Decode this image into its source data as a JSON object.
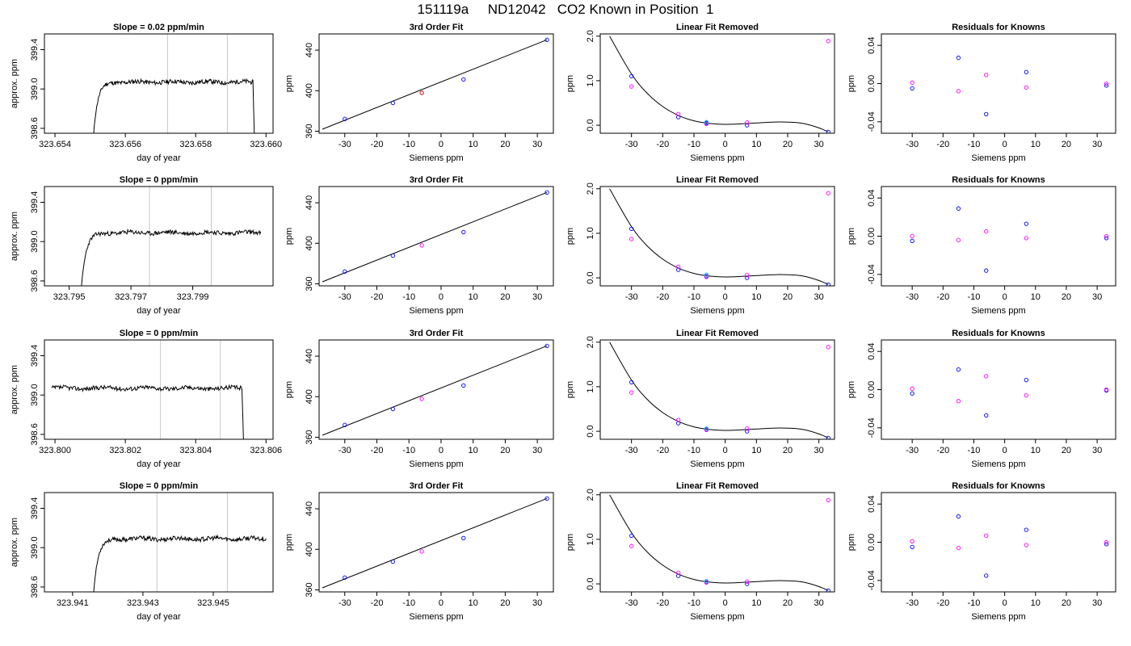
{
  "page": {
    "title": "151119a     ND12042   CO2 Known in Position  1"
  },
  "colors": {
    "trace": "#000000",
    "fit_line": "#000000",
    "cursor_lines": "#c8c8c8",
    "point_blue": "#0000ff",
    "point_magenta": "#ff00ff",
    "point_lightblue": "#00bfff",
    "point_red": "#ff0000"
  },
  "chart_data": [
    {
      "type": "line",
      "panel": "time-series",
      "row": 0,
      "title": "Slope =  0.02  ppm/min",
      "xlabel": "day of year",
      "ylabel": "approx. ppm",
      "xlim": [
        323.6537,
        323.6602
      ],
      "ylim": [
        398.55,
        399.56
      ],
      "xticks": [
        323.654,
        323.656,
        323.658,
        323.66
      ],
      "xtick_labels": [
        "323.654",
        "323.656",
        "323.658",
        "323.660"
      ],
      "yticks": [
        398.6,
        399.0,
        399.4
      ],
      "ytick_labels": [
        "398.6",
        "399.0",
        "399.4"
      ],
      "vlines": [
        323.6572,
        323.6589
      ],
      "trace_start": 323.6551,
      "trace_end": 323.6597,
      "rise_start_value": 398.55,
      "plateau": 399.07,
      "drop_end": true,
      "noise_seed": 11
    },
    {
      "type": "scatter",
      "panel": "fit",
      "row": 0,
      "title": "3rd Order Fit",
      "xlabel": "Siemens ppm",
      "ylabel": "ppm",
      "xlim": [
        -38,
        35
      ],
      "ylim": [
        358,
        456
      ],
      "xticks": [
        -30,
        -20,
        -10,
        0,
        10,
        20,
        30
      ],
      "yticks": [
        360,
        400,
        440
      ],
      "series": [
        {
          "color_key": "point_blue",
          "x": [
            -30,
            -15,
            7,
            33
          ],
          "y": [
            372.1,
            387.9,
            411.1,
            450.1
          ]
        },
        {
          "color_key": "point_lightblue",
          "x": [
            -6
          ],
          "y": [
            397.7
          ]
        },
        {
          "color_key": "point_red",
          "x": [
            -6
          ],
          "y": [
            397.9
          ]
        }
      ],
      "fit_line": {
        "x": [
          -37,
          33
        ],
        "y": [
          362.0,
          450.2
        ]
      }
    },
    {
      "type": "scatter",
      "panel": "linear-removed",
      "row": 0,
      "title": "Linear Fit Removed",
      "xlabel": "Siemens ppm",
      "ylabel": "ppm",
      "xlim": [
        -40,
        35
      ],
      "ylim": [
        -0.18,
        2.05
      ],
      "xticks": [
        -30,
        -20,
        -10,
        0,
        10,
        20,
        30
      ],
      "yticks": [
        0.0,
        1.0,
        2.0
      ],
      "ytick_labels": [
        "0.0",
        "1.0",
        "2.0"
      ],
      "series": [
        {
          "color_key": "point_blue",
          "x": [
            -30,
            -15,
            -6,
            7,
            33
          ],
          "y": [
            1.1,
            0.18,
            0.05,
            0.0,
            -0.15
          ]
        },
        {
          "color_key": "point_magenta",
          "x": [
            -30,
            -15,
            -6,
            7,
            33
          ],
          "y": [
            0.87,
            0.25,
            0.03,
            0.06,
            1.89
          ]
        },
        {
          "color_key": "point_lightblue",
          "x": [
            -6
          ],
          "y": [
            0.07
          ]
        }
      ],
      "curve": {
        "x": [
          -37,
          -30,
          -25,
          -20,
          -15,
          -10,
          -5,
          0,
          5,
          10,
          15,
          20,
          25,
          30,
          33
        ],
        "y": [
          2.0,
          1.15,
          0.72,
          0.42,
          0.22,
          0.1,
          0.04,
          0.02,
          0.03,
          0.05,
          0.07,
          0.07,
          0.04,
          -0.06,
          -0.15
        ]
      }
    },
    {
      "type": "scatter",
      "panel": "residuals",
      "row": 0,
      "title": "Residuals for Knowns",
      "xlabel": "Siemens ppm",
      "ylabel": "ppm",
      "xlim": [
        -40,
        36
      ],
      "ylim": [
        -0.052,
        0.052
      ],
      "xticks": [
        -30,
        -20,
        -10,
        0,
        10,
        20,
        30
      ],
      "yticks": [
        -0.04,
        0.0,
        0.04
      ],
      "ytick_labels": [
        "-0.04",
        "0.00",
        "0.04"
      ],
      "series": [
        {
          "color_key": "point_blue",
          "x": [
            -30,
            -15,
            -6,
            7,
            33
          ],
          "y": [
            -0.005,
            0.027,
            -0.032,
            0.012,
            -0.002
          ]
        },
        {
          "color_key": "point_magenta",
          "x": [
            -30,
            -15,
            -6,
            7,
            33
          ],
          "y": [
            0.001,
            -0.008,
            0.009,
            -0.004,
            0.0
          ]
        }
      ]
    },
    {
      "type": "line",
      "panel": "time-series",
      "row": 1,
      "title": "Slope =  0  ppm/min",
      "xlabel": "day of year",
      "ylabel": "approx. ppm",
      "xlim": [
        323.7942,
        323.8016
      ],
      "ylim": [
        398.55,
        399.56
      ],
      "xticks": [
        323.795,
        323.797,
        323.799
      ],
      "xtick_labels": [
        "323.795",
        "323.797",
        "323.799"
      ],
      "yticks": [
        398.6,
        399.0,
        399.4
      ],
      "ytick_labels": [
        "398.6",
        "399.0",
        "399.4"
      ],
      "vlines": [
        323.7976,
        323.7996
      ],
      "trace_start": 323.7954,
      "trace_end": 323.8012,
      "rise_start_value": 398.55,
      "plateau": 399.09,
      "drop_end": false,
      "noise_seed": 23
    },
    {
      "type": "scatter",
      "panel": "fit",
      "row": 1,
      "title": "3rd Order Fit",
      "xlabel": "Siemens ppm",
      "ylabel": "ppm",
      "xlim": [
        -38,
        35
      ],
      "ylim": [
        358,
        456
      ],
      "xticks": [
        -30,
        -20,
        -10,
        0,
        10,
        20,
        30
      ],
      "yticks": [
        360,
        400,
        440
      ],
      "series": [
        {
          "color_key": "point_blue",
          "x": [
            -30,
            -15,
            7,
            33
          ],
          "y": [
            372.1,
            387.9,
            411.1,
            450.1
          ]
        },
        {
          "color_key": "point_magenta",
          "x": [
            -6
          ],
          "y": [
            397.9
          ]
        }
      ],
      "fit_line": {
        "x": [
          -37,
          33
        ],
        "y": [
          362.0,
          450.2
        ]
      }
    },
    {
      "type": "scatter",
      "panel": "linear-removed",
      "row": 1,
      "title": "Linear Fit Removed",
      "xlabel": "Siemens ppm",
      "ylabel": "ppm",
      "xlim": [
        -40,
        35
      ],
      "ylim": [
        -0.18,
        2.05
      ],
      "xticks": [
        -30,
        -20,
        -10,
        0,
        10,
        20,
        30
      ],
      "yticks": [
        0.0,
        1.0,
        2.0
      ],
      "ytick_labels": [
        "0.0",
        "1.0",
        "2.0"
      ],
      "series": [
        {
          "color_key": "point_blue",
          "x": [
            -30,
            -15,
            -6,
            7,
            33
          ],
          "y": [
            1.1,
            0.18,
            0.04,
            0.0,
            -0.15
          ]
        },
        {
          "color_key": "point_magenta",
          "x": [
            -30,
            -15,
            -6,
            7,
            33
          ],
          "y": [
            0.87,
            0.25,
            0.02,
            0.06,
            1.9
          ]
        },
        {
          "color_key": "point_lightblue",
          "x": [
            -6
          ],
          "y": [
            0.07
          ]
        }
      ],
      "curve": {
        "x": [
          -37,
          -30,
          -25,
          -20,
          -15,
          -10,
          -5,
          0,
          5,
          10,
          15,
          20,
          25,
          30,
          33
        ],
        "y": [
          2.0,
          1.15,
          0.72,
          0.42,
          0.22,
          0.1,
          0.04,
          0.02,
          0.03,
          0.05,
          0.07,
          0.07,
          0.04,
          -0.06,
          -0.15
        ]
      }
    },
    {
      "type": "scatter",
      "panel": "residuals",
      "row": 1,
      "title": "Residuals for Knowns",
      "xlabel": "Siemens ppm",
      "ylabel": "ppm",
      "xlim": [
        -40,
        36
      ],
      "ylim": [
        -0.052,
        0.052
      ],
      "xticks": [
        -30,
        -20,
        -10,
        0,
        10,
        20,
        30
      ],
      "yticks": [
        -0.04,
        0.0,
        0.04
      ],
      "ytick_labels": [
        "-0.04",
        "0.00",
        "0.04"
      ],
      "series": [
        {
          "color_key": "point_blue",
          "x": [
            -30,
            -15,
            -6,
            7,
            33
          ],
          "y": [
            -0.005,
            0.029,
            -0.036,
            0.013,
            -0.002
          ]
        },
        {
          "color_key": "point_magenta",
          "x": [
            -30,
            -15,
            -6,
            7,
            33
          ],
          "y": [
            0.0,
            -0.004,
            0.005,
            -0.002,
            0.0
          ]
        }
      ]
    },
    {
      "type": "line",
      "panel": "time-series",
      "row": 2,
      "title": "Slope =  0  ppm/min",
      "xlabel": "day of year",
      "ylabel": "approx. ppm",
      "xlim": [
        323.7997,
        323.8062
      ],
      "ylim": [
        398.55,
        399.56
      ],
      "xticks": [
        323.8,
        323.802,
        323.804,
        323.806
      ],
      "xtick_labels": [
        "323.800",
        "323.802",
        "323.804",
        "323.806"
      ],
      "yticks": [
        398.6,
        399.0,
        399.4
      ],
      "ytick_labels": [
        "398.6",
        "399.0",
        "399.4"
      ],
      "vlines": [
        323.803,
        323.8047
      ],
      "trace_start": 323.7999,
      "trace_end": 323.8054,
      "rise_start_value": null,
      "plateau": 399.07,
      "drop_end": true,
      "noise_seed": 37
    },
    {
      "type": "scatter",
      "panel": "fit",
      "row": 2,
      "title": "3rd Order Fit",
      "xlabel": "Siemens ppm",
      "ylabel": "ppm",
      "xlim": [
        -38,
        35
      ],
      "ylim": [
        358,
        456
      ],
      "xticks": [
        -30,
        -20,
        -10,
        0,
        10,
        20,
        30
      ],
      "yticks": [
        360,
        400,
        440
      ],
      "series": [
        {
          "color_key": "point_blue",
          "x": [
            -30,
            -15,
            7,
            33
          ],
          "y": [
            372.1,
            387.9,
            411.1,
            450.1
          ]
        },
        {
          "color_key": "point_magenta",
          "x": [
            -6
          ],
          "y": [
            397.9
          ]
        }
      ],
      "fit_line": {
        "x": [
          -37,
          33
        ],
        "y": [
          362.0,
          450.2
        ]
      }
    },
    {
      "type": "scatter",
      "panel": "linear-removed",
      "row": 2,
      "title": "Linear Fit Removed",
      "xlabel": "Siemens ppm",
      "ylabel": "ppm",
      "xlim": [
        -40,
        35
      ],
      "ylim": [
        -0.18,
        2.05
      ],
      "xticks": [
        -30,
        -20,
        -10,
        0,
        10,
        20,
        30
      ],
      "yticks": [
        0.0,
        1.0,
        2.0
      ],
      "ytick_labels": [
        "0.0",
        "1.0",
        "2.0"
      ],
      "series": [
        {
          "color_key": "point_blue",
          "x": [
            -30,
            -15,
            -6,
            7,
            33
          ],
          "y": [
            1.1,
            0.18,
            0.04,
            0.0,
            -0.15
          ]
        },
        {
          "color_key": "point_magenta",
          "x": [
            -30,
            -15,
            -6,
            7,
            33
          ],
          "y": [
            0.87,
            0.25,
            0.03,
            0.06,
            1.89
          ]
        },
        {
          "color_key": "point_lightblue",
          "x": [
            -6
          ],
          "y": [
            0.06
          ]
        }
      ],
      "curve": {
        "x": [
          -37,
          -30,
          -25,
          -20,
          -15,
          -10,
          -5,
          0,
          5,
          10,
          15,
          20,
          25,
          30,
          33
        ],
        "y": [
          2.0,
          1.15,
          0.72,
          0.42,
          0.22,
          0.1,
          0.04,
          0.02,
          0.03,
          0.05,
          0.07,
          0.07,
          0.04,
          -0.06,
          -0.15
        ]
      }
    },
    {
      "type": "scatter",
      "panel": "residuals",
      "row": 2,
      "title": "Residuals for Knowns",
      "xlabel": "Siemens ppm",
      "ylabel": "ppm",
      "xlim": [
        -40,
        36
      ],
      "ylim": [
        -0.052,
        0.052
      ],
      "xticks": [
        -30,
        -20,
        -10,
        0,
        10,
        20,
        30
      ],
      "yticks": [
        -0.04,
        0.0,
        0.04
      ],
      "ytick_labels": [
        "-0.04",
        "0.00",
        "0.04"
      ],
      "series": [
        {
          "color_key": "point_blue",
          "x": [
            -30,
            -15,
            -6,
            7,
            33
          ],
          "y": [
            -0.004,
            0.021,
            -0.027,
            0.01,
            -0.001
          ]
        },
        {
          "color_key": "point_magenta",
          "x": [
            -30,
            -15,
            -6,
            7,
            33
          ],
          "y": [
            0.001,
            -0.012,
            0.014,
            -0.006,
            0.0
          ]
        }
      ]
    },
    {
      "type": "line",
      "panel": "time-series",
      "row": 3,
      "title": "Slope =  0  ppm/min",
      "xlabel": "day of year",
      "ylabel": "approx. ppm",
      "xlim": [
        323.9402,
        323.9467
      ],
      "ylim": [
        398.55,
        399.56
      ],
      "xticks": [
        323.941,
        323.943,
        323.945
      ],
      "xtick_labels": [
        "323.941",
        "323.943",
        "323.945"
      ],
      "yticks": [
        398.6,
        399.0,
        399.4
      ],
      "ytick_labels": [
        "398.6",
        "399.0",
        "399.4"
      ],
      "vlines": [
        323.9434,
        323.9454
      ],
      "trace_start": 323.9416,
      "trace_end": 323.9465,
      "rise_start_value": 398.55,
      "plateau": 399.09,
      "drop_end": false,
      "noise_seed": 53
    },
    {
      "type": "scatter",
      "panel": "fit",
      "row": 3,
      "title": "3rd Order Fit",
      "xlabel": "Siemens ppm",
      "ylabel": "ppm",
      "xlim": [
        -38,
        35
      ],
      "ylim": [
        358,
        456
      ],
      "xticks": [
        -30,
        -20,
        -10,
        0,
        10,
        20,
        30
      ],
      "yticks": [
        360,
        400,
        440
      ],
      "series": [
        {
          "color_key": "point_blue",
          "x": [
            -30,
            -15,
            7,
            33
          ],
          "y": [
            372.1,
            387.9,
            411.1,
            450.1
          ]
        },
        {
          "color_key": "point_magenta",
          "x": [
            -6
          ],
          "y": [
            397.9
          ]
        }
      ],
      "fit_line": {
        "x": [
          -37,
          33
        ],
        "y": [
          362.0,
          450.2
        ]
      }
    },
    {
      "type": "scatter",
      "panel": "linear-removed",
      "row": 3,
      "title": "Linear Fit Removed",
      "xlabel": "Siemens ppm",
      "ylabel": "ppm",
      "xlim": [
        -40,
        35
      ],
      "ylim": [
        -0.18,
        2.05
      ],
      "xticks": [
        -30,
        -20,
        -10,
        0,
        10,
        20,
        30
      ],
      "yticks": [
        0.0,
        1.0,
        2.0
      ],
      "ytick_labels": [
        "0.0",
        "1.0",
        "2.0"
      ],
      "series": [
        {
          "color_key": "point_blue",
          "x": [
            -30,
            -15,
            -6,
            7,
            33
          ],
          "y": [
            1.08,
            0.18,
            0.04,
            0.0,
            -0.15
          ]
        },
        {
          "color_key": "point_magenta",
          "x": [
            -30,
            -15,
            -6,
            7,
            33
          ],
          "y": [
            0.85,
            0.25,
            0.03,
            0.05,
            1.88
          ]
        },
        {
          "color_key": "point_lightblue",
          "x": [
            -6
          ],
          "y": [
            0.06
          ]
        }
      ],
      "curve": {
        "x": [
          -37,
          -30,
          -25,
          -20,
          -15,
          -10,
          -5,
          0,
          5,
          10,
          15,
          20,
          25,
          30,
          33
        ],
        "y": [
          2.0,
          1.15,
          0.72,
          0.42,
          0.22,
          0.1,
          0.04,
          0.02,
          0.03,
          0.05,
          0.07,
          0.07,
          0.04,
          -0.06,
          -0.15
        ]
      }
    },
    {
      "type": "scatter",
      "panel": "residuals",
      "row": 3,
      "title": "Residuals for Knowns",
      "xlabel": "Siemens ppm",
      "ylabel": "ppm",
      "xlim": [
        -40,
        36
      ],
      "ylim": [
        -0.052,
        0.052
      ],
      "xticks": [
        -30,
        -20,
        -10,
        0,
        10,
        20,
        30
      ],
      "yticks": [
        -0.04,
        0.0,
        0.04
      ],
      "ytick_labels": [
        "-0.04",
        "0.00",
        "0.04"
      ],
      "series": [
        {
          "color_key": "point_blue",
          "x": [
            -30,
            -15,
            -6,
            7,
            33
          ],
          "y": [
            -0.005,
            0.027,
            -0.035,
            0.013,
            -0.002
          ]
        },
        {
          "color_key": "point_magenta",
          "x": [
            -30,
            -15,
            -6,
            7,
            33
          ],
          "y": [
            0.001,
            -0.006,
            0.007,
            -0.003,
            0.0
          ]
        }
      ]
    }
  ]
}
